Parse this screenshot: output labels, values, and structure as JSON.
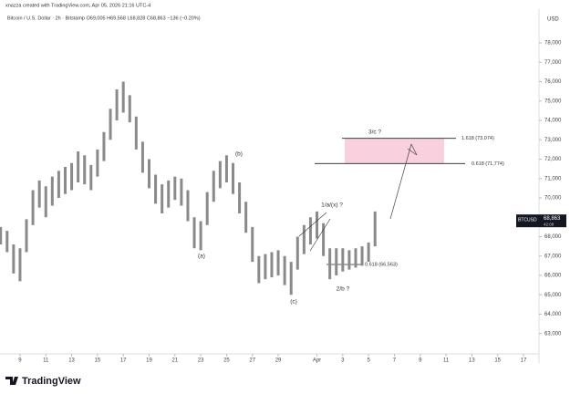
{
  "chart_data": {
    "type": "range-bar",
    "title": "Bitcoin / U.S. Dollar · 2h · Bitstamp O69,005 H69,568 L68,828 C68,863 −136 (−0.20%)",
    "subtitle": "xnazza created with TradingView.com, Apr 05, 2026 21:16 UTC-4",
    "currency": "USD",
    "symbol": "BTCUSD",
    "countdown": "42:08",
    "brand": "TradingView",
    "color": "#8a8a8a",
    "last_price": {
      "value": 68863,
      "label": "68,863"
    },
    "x": [
      -1.5,
      -1,
      -0.5,
      0,
      0.5,
      1,
      1.5,
      2,
      2.5,
      3,
      3.5,
      4,
      4.5,
      5,
      5.5,
      6,
      6.5,
      7,
      7.5,
      8,
      8.5,
      9,
      9.5,
      10,
      10.5,
      11,
      11.5,
      12,
      12.5,
      13,
      13.5,
      14,
      14.5,
      15,
      15.5,
      16,
      16.5,
      17,
      17.5,
      18,
      18.5,
      19,
      19.5,
      20,
      20.5,
      21,
      21.5,
      22,
      22.5,
      23,
      23.5,
      24,
      24.5,
      25,
      25.5,
      26,
      26.5,
      27,
      27.5
    ],
    "high": [
      68500,
      68300,
      67600,
      67400,
      68900,
      70400,
      70900,
      70600,
      71100,
      71400,
      71600,
      71800,
      72400,
      72200,
      71700,
      72500,
      73400,
      74600,
      75600,
      76000,
      75300,
      74200,
      72900,
      72000,
      71200,
      70700,
      70900,
      71100,
      71000,
      70400,
      69000,
      68800,
      70300,
      71400,
      71900,
      72200,
      71800,
      70800,
      69800,
      68500,
      67000,
      67100,
      67200,
      67300,
      67000,
      66700,
      68000,
      68600,
      69000,
      69300,
      68700,
      67400,
      67400,
      67400,
      67300,
      67400,
      67500,
      67700,
      69300
    ],
    "low": [
      67600,
      67200,
      66100,
      65700,
      67200,
      68600,
      69500,
      69000,
      69600,
      70000,
      70200,
      70400,
      70800,
      70700,
      70400,
      71100,
      71900,
      73000,
      74000,
      74400,
      73900,
      72500,
      71300,
      70500,
      69700,
      69200,
      69500,
      69900,
      69600,
      68800,
      67400,
      67300,
      68600,
      69800,
      70500,
      70800,
      70200,
      69200,
      68200,
      66700,
      65600,
      65800,
      65900,
      66000,
      65500,
      65000,
      66300,
      67100,
      67600,
      67900,
      67000,
      65800,
      66000,
      66200,
      66300,
      66400,
      66500,
      66700,
      67500
    ],
    "xlim": [
      -1.55,
      40.2
    ],
    "ylim": [
      61950,
      79650
    ],
    "xticks": [
      {
        "value": 0,
        "label": "9"
      },
      {
        "value": 2,
        "label": "11"
      },
      {
        "value": 4,
        "label": "13"
      },
      {
        "value": 6,
        "label": "15"
      },
      {
        "value": 8,
        "label": "17"
      },
      {
        "value": 10,
        "label": "19"
      },
      {
        "value": 12,
        "label": "21"
      },
      {
        "value": 14,
        "label": "23"
      },
      {
        "value": 16,
        "label": "25"
      },
      {
        "value": 18,
        "label": "27"
      },
      {
        "value": 20,
        "label": "29"
      },
      {
        "value": 23,
        "label": "Apr"
      },
      {
        "value": 25,
        "label": "3"
      },
      {
        "value": 27,
        "label": "5"
      },
      {
        "value": 29,
        "label": "7"
      },
      {
        "value": 31,
        "label": "9"
      },
      {
        "value": 33,
        "label": "11"
      },
      {
        "value": 35,
        "label": "13"
      },
      {
        "value": 37,
        "label": "15"
      },
      {
        "value": 39,
        "label": "17"
      }
    ],
    "yticks": [
      {
        "value": 63000,
        "label": "63,000"
      },
      {
        "value": 64000,
        "label": "64,000"
      },
      {
        "value": 65000,
        "label": "65,000"
      },
      {
        "value": 66000,
        "label": "66,000"
      },
      {
        "value": 67000,
        "label": "67,000"
      },
      {
        "value": 68000,
        "label": "68,000"
      },
      {
        "value": 69000,
        "label": "69,000"
      },
      {
        "value": 70000,
        "label": "70,000"
      },
      {
        "value": 71000,
        "label": "71,000"
      },
      {
        "value": 72000,
        "label": "72,000"
      },
      {
        "value": 73000,
        "label": "73,000"
      },
      {
        "value": 74000,
        "label": "74,000"
      },
      {
        "value": 75000,
        "label": "75,000"
      },
      {
        "value": 76000,
        "label": "76,000"
      },
      {
        "value": 77000,
        "label": "77,000"
      },
      {
        "value": 78000,
        "label": "78,000"
      }
    ],
    "levels": [
      {
        "value": 73074,
        "label": "1.618 (73,074)"
      },
      {
        "value": 71774,
        "label": "0.618 (71,774)"
      },
      {
        "value": 66563,
        "label": "0.618 (66,563)"
      }
    ],
    "annotations": [
      "(a)",
      "(b)",
      "(c)",
      "1/a/(x) ?",
      "2/b ?",
      "3/c ?"
    ]
  }
}
